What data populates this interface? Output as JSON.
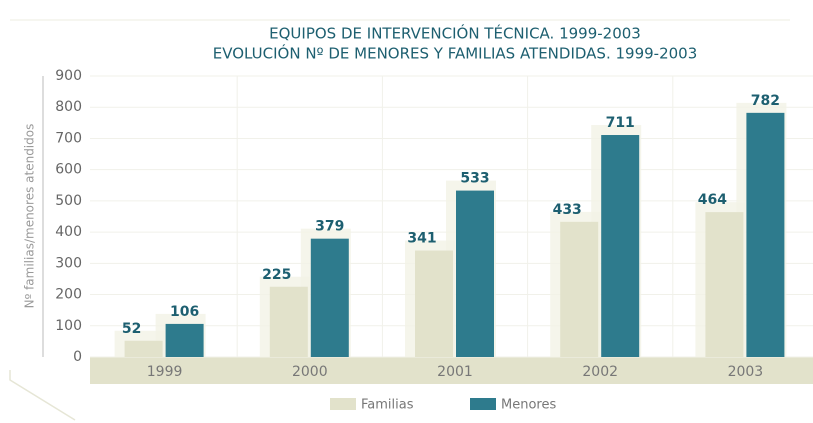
{
  "chart_data": {
    "type": "bar",
    "title": "EQUIPOS DE INTERVENCIÓN TÉCNICA. 1999-2003",
    "subtitle": "EVOLUCIÓN Nº DE MENORES Y FAMILIAS ATENDIDAS. 1999-2003",
    "y_label": "Nº familias/menores atendidos",
    "categories": [
      "1999",
      "2000",
      "2001",
      "2002",
      "2003"
    ],
    "series": [
      {
        "name": "Familias",
        "color": "#e2e2cb",
        "values": [
          52,
          225,
          341,
          433,
          464
        ]
      },
      {
        "name": "Menores",
        "color": "#2e7b8d",
        "values": [
          106,
          379,
          533,
          711,
          782
        ]
      }
    ],
    "ylim": [
      0,
      900
    ],
    "yticks": [
      0,
      100,
      200,
      300,
      400,
      500,
      600,
      700,
      800,
      900
    ],
    "grid": true,
    "legend": "bottom"
  }
}
